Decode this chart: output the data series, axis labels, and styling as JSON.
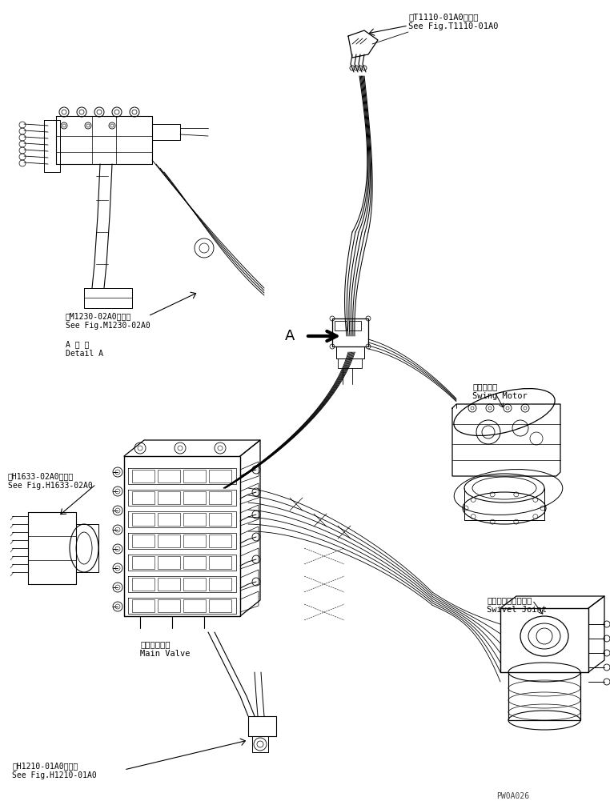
{
  "background_color": "#ffffff",
  "line_color": "#000000",
  "figsize": [
    7.62,
    10.06
  ],
  "dpi": 100,
  "labels": {
    "top_right_1": "第T1110-01A0図参照",
    "top_right_2": "See Fig.T1110-01A0",
    "mid_left_ref_1": "第M1230-02A0図参照",
    "mid_left_ref_2": "See Fig.M1230-02A0",
    "detail_a_1": "A 詳 細",
    "detail_a_2": "Detail A",
    "swing_motor_1": "旋回モータ",
    "swing_motor_2": "Swing Motor",
    "swivel_1": "スイベルジョイント",
    "swivel_2": "Swivel Joint",
    "main_valve_ref_1": "第H1633-02A0図参照",
    "main_valve_ref_2": "See Fig.H1633-02A0",
    "main_valve_1": "メインバルブ",
    "main_valve_2": "Main Valve",
    "bottom_ref_1": "第H1210-01A0図参照",
    "bottom_ref_2": "See Fig.H1210-01A0",
    "arrow_A": "A"
  },
  "watermark": "PW0A026"
}
